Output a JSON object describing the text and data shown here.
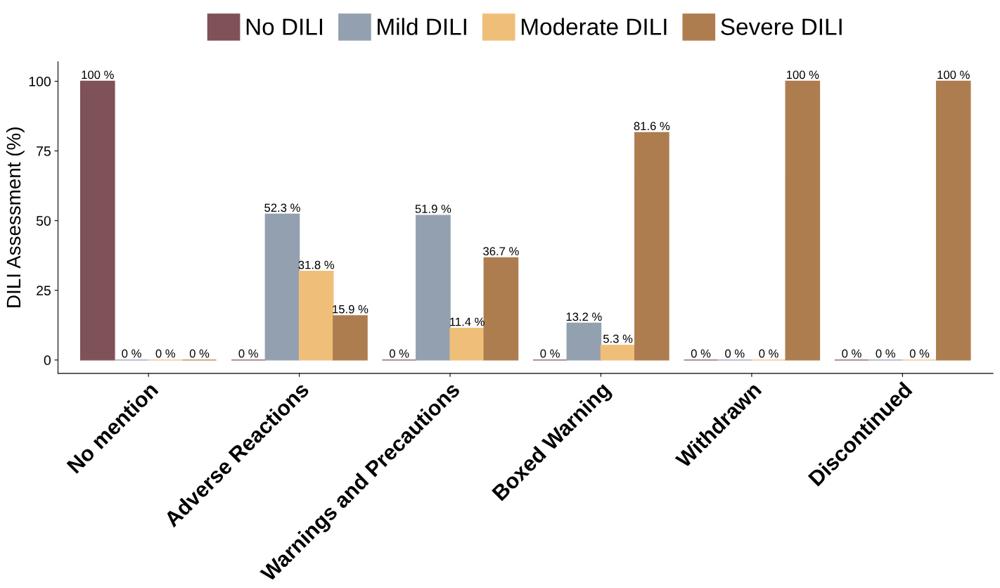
{
  "chart_data": {
    "type": "bar",
    "ylabel": "DILI Assessment (%)",
    "categories": [
      "No mention",
      "Adverse Reactions",
      "Warnings and Precautions",
      "Boxed Warning",
      "Withdrawn",
      "Discontinued"
    ],
    "series": [
      {
        "name": "No DILI",
        "color": "#7f5257",
        "values": [
          100,
          0,
          0,
          0,
          0,
          0
        ],
        "value_labels": [
          "100 %",
          "0 %",
          "0 %",
          "0 %",
          "0 %",
          "0 %"
        ]
      },
      {
        "name": "Mild DILI",
        "color": "#93a0b0",
        "values": [
          0,
          52.3,
          51.9,
          13.2,
          0,
          0
        ],
        "value_labels": [
          "0 %",
          "52.3 %",
          "51.9 %",
          "13.2 %",
          "0 %",
          "0 %"
        ]
      },
      {
        "name": "Moderate DILI",
        "color": "#efbf7a",
        "values": [
          0,
          31.8,
          11.4,
          5.3,
          0,
          0
        ],
        "value_labels": [
          "0 %",
          "31.8 %",
          "11.4 %",
          "5.3 %",
          "0 %",
          "0 %"
        ]
      },
      {
        "name": "Severe DILI",
        "color": "#ae7d4f",
        "values": [
          0,
          15.9,
          36.7,
          81.6,
          100,
          100
        ],
        "value_labels": [
          "0 %",
          "15.9 %",
          "36.7 %",
          "81.6 %",
          "100 %",
          "100 %"
        ]
      }
    ],
    "ylim": [
      -4.8,
      107
    ],
    "yticks": [
      0,
      25,
      50,
      75,
      100
    ],
    "grid": false,
    "legend": "top"
  }
}
